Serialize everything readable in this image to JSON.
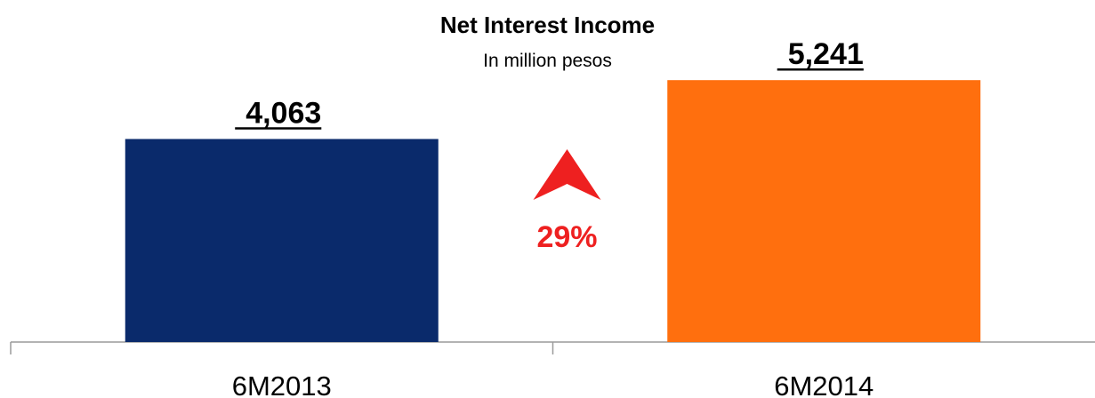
{
  "chart_data": {
    "type": "bar",
    "title": "Net Interest Income",
    "subtitle": "In million pesos",
    "categories": [
      "6M2013",
      "6M2014"
    ],
    "values": [
      4063,
      5241
    ],
    "value_labels": [
      "4,063",
      "5,241"
    ],
    "bar_colors": [
      "#0a2a6b",
      "#ff6f0e"
    ],
    "ylim": [
      0,
      5600
    ],
    "grid": false,
    "legend": "none",
    "annotation": {
      "text": "29%",
      "color": "#ee2020",
      "icon": "up-arrow-icon"
    }
  }
}
